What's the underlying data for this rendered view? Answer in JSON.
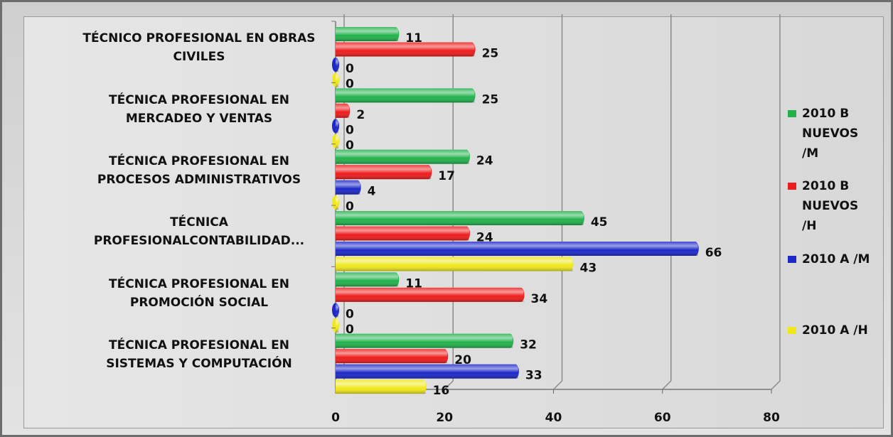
{
  "chart_data": {
    "type": "bar",
    "orientation": "horizontal",
    "categories": [
      "TÉCNICO PROFESIONAL EN OBRAS CIVILES",
      "TÉCNICA PROFESIONAL  EN MERCADEO Y VENTAS",
      "TÉCNICA PROFESIONAL  EN PROCESOS ADMINISTRATIVOS",
      "TÉCNICA PROFESIONALCONTABILIDAD...",
      "TÉCNICA PROFESIONAL EN PROMOCIÓN SOCIAL",
      "TÉCNICA PROFESIONAL EN SISTEMAS Y COMPUTACIÓN"
    ],
    "series": [
      {
        "name": "2010 B NUEVOS /M",
        "color": "#22b14c",
        "values": [
          11,
          25,
          24,
          45,
          11,
          32
        ]
      },
      {
        "name": "2010 B NUEVOS /H",
        "color": "#ee1c1c",
        "values": [
          25,
          2,
          17,
          24,
          34,
          20
        ]
      },
      {
        "name": "2010  A /M",
        "color": "#1c28c8",
        "values": [
          0,
          0,
          4,
          66,
          0,
          33
        ]
      },
      {
        "name": "2010  A /H",
        "color": "#f0e81c",
        "values": [
          0,
          0,
          0,
          43,
          0,
          16
        ]
      }
    ],
    "xlim": [
      0,
      80
    ],
    "xticks": [
      0,
      20,
      40,
      60,
      80
    ],
    "grid": true,
    "legend": "right"
  }
}
